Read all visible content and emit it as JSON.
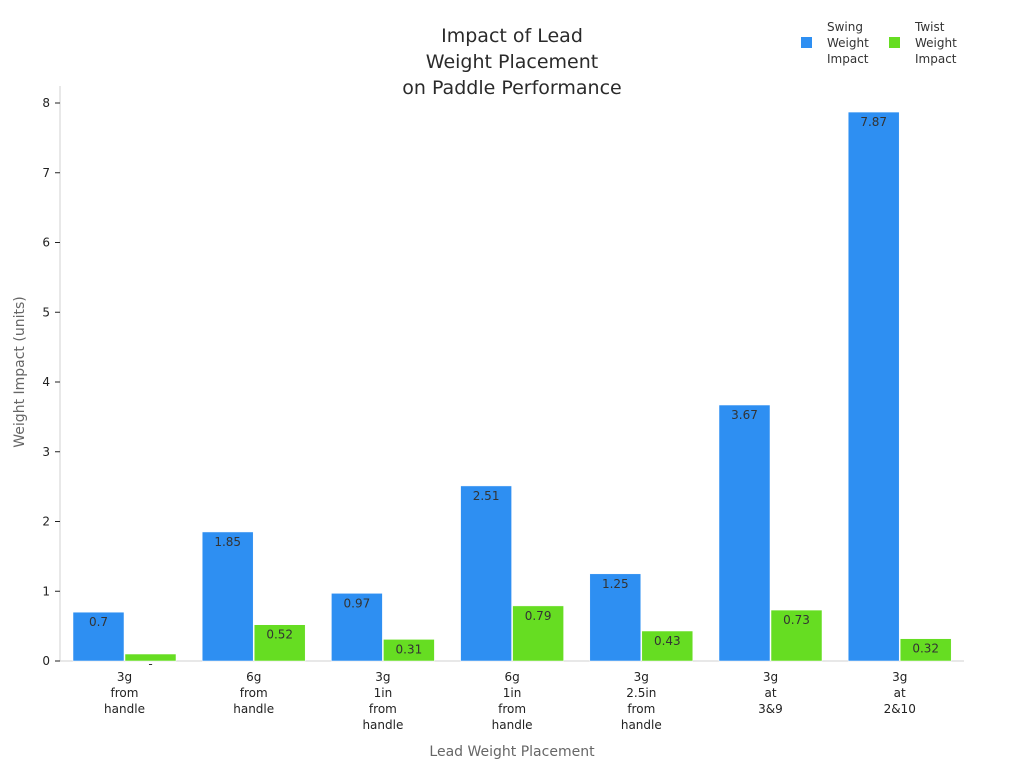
{
  "chart_data": {
    "type": "bar",
    "title_lines": [
      "Impact of Lead",
      "Weight Placement",
      "on Paddle Performance"
    ],
    "xlabel": "Lead Weight Placement",
    "ylabel": "Weight Impact (units)",
    "ylim": [
      0,
      8
    ],
    "yticks": [
      "0",
      "1",
      "2",
      "3",
      "4",
      "5",
      "6",
      "7",
      "8"
    ],
    "grid": false,
    "legend_position": "top-right",
    "categories": [
      [
        "3g",
        "from",
        "handle"
      ],
      [
        "6g",
        "from",
        "handle"
      ],
      [
        "3g",
        "1in",
        "from",
        "handle"
      ],
      [
        "6g",
        "1in",
        "from",
        "handle"
      ],
      [
        "3g",
        "2.5in",
        "from",
        "handle"
      ],
      [
        "3g",
        "at",
        "3&9"
      ],
      [
        "3g",
        "at",
        "2&10"
      ]
    ],
    "series": [
      {
        "name_lines": [
          "Swing",
          "Weight",
          "Impact"
        ],
        "color": "#2e8ff2",
        "values": [
          0.7,
          1.85,
          0.97,
          2.51,
          1.25,
          3.67,
          7.87
        ],
        "labels": [
          "0.7",
          "1.85",
          "0.97",
          "2.51",
          "1.25",
          "3.67",
          "7.87"
        ]
      },
      {
        "name_lines": [
          "Twist",
          "Weight",
          "Impact"
        ],
        "color": "#66dd22",
        "values": [
          0.1,
          0.52,
          0.31,
          0.79,
          0.43,
          0.73,
          0.32
        ],
        "labels": [
          "-",
          "0.52",
          "0.31",
          "0.79",
          "0.43",
          "0.73",
          "0.32"
        ]
      }
    ]
  }
}
